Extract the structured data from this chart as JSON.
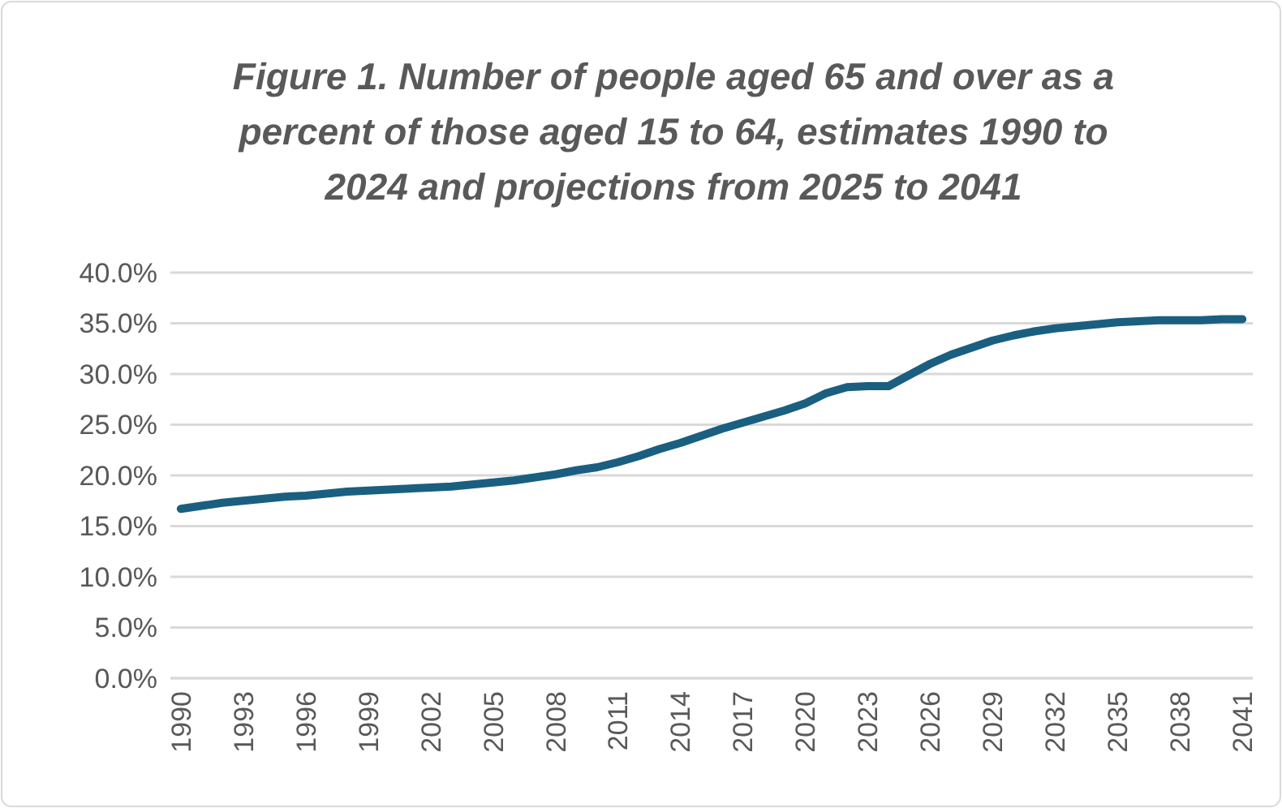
{
  "chart_data": {
    "type": "line",
    "title": "Figure 1. Number of people aged 65 and over as a percent of those aged 15 to 64, estimates 1990 to 2024 and projections from 2025 to 2041",
    "x": [
      1990,
      1991,
      1992,
      1993,
      1994,
      1995,
      1996,
      1997,
      1998,
      1999,
      2000,
      2001,
      2002,
      2003,
      2004,
      2005,
      2006,
      2007,
      2008,
      2009,
      2010,
      2011,
      2012,
      2013,
      2014,
      2015,
      2016,
      2017,
      2018,
      2019,
      2020,
      2021,
      2022,
      2023,
      2024,
      2025,
      2026,
      2027,
      2028,
      2029,
      2030,
      2031,
      2032,
      2033,
      2034,
      2035,
      2036,
      2037,
      2038,
      2039,
      2040,
      2041
    ],
    "series": [
      {
        "color": "#1a5f80",
        "values": [
          16.7,
          17.0,
          17.3,
          17.5,
          17.7,
          17.9,
          18.0,
          18.2,
          18.4,
          18.5,
          18.6,
          18.7,
          18.8,
          18.9,
          19.1,
          19.3,
          19.5,
          19.8,
          20.1,
          20.5,
          20.8,
          21.3,
          21.9,
          22.6,
          23.2,
          23.9,
          24.6,
          25.2,
          25.8,
          26.4,
          27.1,
          28.1,
          28.7,
          28.8,
          28.8,
          29.9,
          31.0,
          31.9,
          32.6,
          33.3,
          33.8,
          34.2,
          34.5,
          34.7,
          34.9,
          35.1,
          35.2,
          35.3,
          35.3,
          35.3,
          35.4,
          35.4
        ]
      }
    ],
    "xlim": [
      1989.5,
      2041.5
    ],
    "xticks": [
      1990,
      1993,
      1996,
      1999,
      2002,
      2005,
      2008,
      2011,
      2014,
      2017,
      2020,
      2023,
      2026,
      2029,
      2032,
      2035,
      2038,
      2041
    ],
    "ylim": [
      0,
      40
    ],
    "yticks": [
      {
        "value": 0,
        "label": "0.0%"
      },
      {
        "value": 5,
        "label": "5.0%"
      },
      {
        "value": 10,
        "label": "10.0%"
      },
      {
        "value": 15,
        "label": "15.0%"
      },
      {
        "value": 20,
        "label": "20.0%"
      },
      {
        "value": 25,
        "label": "25.0%"
      },
      {
        "value": 30,
        "label": "30.0%"
      },
      {
        "value": 35,
        "label": "35.0%"
      },
      {
        "value": 40,
        "label": "40.0%"
      }
    ],
    "grid": "y",
    "marker": "none",
    "line_style": "solid"
  }
}
